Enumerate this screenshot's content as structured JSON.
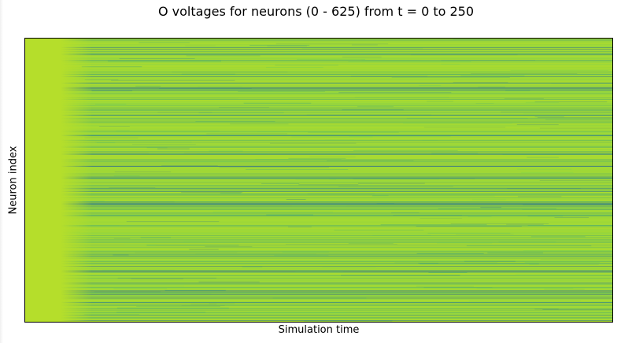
{
  "chart_data": {
    "type": "heatmap",
    "title": "O voltages for neurons (0 - 625) from t = 0 to 250",
    "xlabel": "Simulation time",
    "ylabel": "Neuron index",
    "neuron_range": [
      0,
      625
    ],
    "time_range": [
      0,
      250
    ],
    "xticks": false,
    "yticks": false,
    "colorbar": false,
    "colormap": "viridis",
    "colors": {
      "base": "#b5de2b",
      "mid": "#5ec962",
      "strong": "#21918c",
      "dark": "#2c728e",
      "frame": "#000000"
    }
  }
}
